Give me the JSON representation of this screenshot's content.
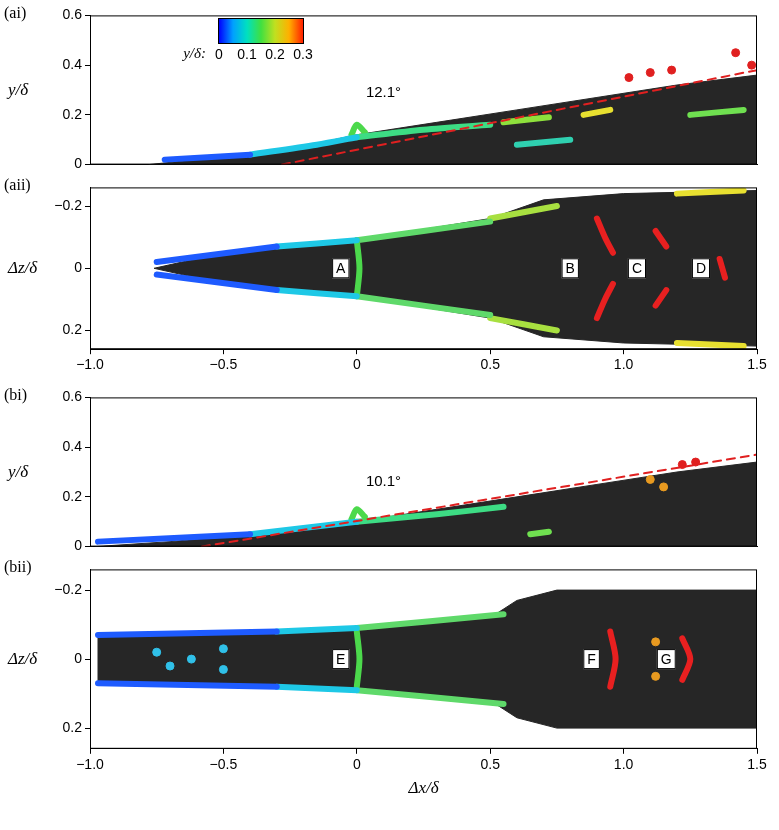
{
  "chart_data": [
    {
      "type": "line",
      "title": "(ai)",
      "y_label": "y/δ",
      "xlim": [
        -1,
        1.5
      ],
      "ylim": [
        0,
        0.6
      ],
      "yticks": [
        0,
        0.2,
        0.4,
        0.6
      ],
      "tick_labels": "y",
      "grid": false,
      "colorbar": {
        "label": "y/δ:",
        "range": [
          0,
          0.3
        ],
        "ticks": [
          0,
          0.1,
          0.2,
          0.3
        ]
      },
      "series": [
        {
          "type": "area",
          "color": "#262626",
          "points": [
            [
              -0.78,
              0
            ],
            [
              -0.6,
              0.02
            ],
            [
              -0.3,
              0.05
            ],
            [
              0,
              0.12
            ],
            [
              0.3,
              0.17
            ],
            [
              0.6,
              0.22
            ],
            [
              0.9,
              0.27
            ],
            [
              1.2,
              0.32
            ],
            [
              1.5,
              0.36
            ],
            [
              1.5,
              0
            ],
            [
              -0.78,
              0
            ]
          ]
        },
        {
          "type": "line",
          "color": "#1e5bff",
          "points": [
            [
              -0.72,
              0.02
            ],
            [
              -0.4,
              0.04
            ]
          ]
        },
        {
          "type": "line",
          "color": "#1ec8e6",
          "points": [
            [
              -0.4,
              0.04
            ],
            [
              -0.15,
              0.08
            ],
            [
              0,
              0.11
            ]
          ]
        },
        {
          "type": "line",
          "color": "#3ddc84",
          "points": [
            [
              0,
              0.11
            ],
            [
              0.25,
              0.14
            ],
            [
              0.5,
              0.16
            ]
          ]
        },
        {
          "type": "line",
          "color": "#4cd94c",
          "points": [
            [
              -0.02,
              0.12
            ],
            [
              0,
              0.16
            ],
            [
              0.03,
              0.13
            ]
          ]
        },
        {
          "type": "line",
          "color": "#8ee03c",
          "points": [
            [
              0.55,
              0.17
            ],
            [
              0.72,
              0.19
            ]
          ]
        },
        {
          "type": "line",
          "color": "#2fd0b0",
          "points": [
            [
              0.6,
              0.08
            ],
            [
              0.8,
              0.1
            ]
          ]
        },
        {
          "type": "line",
          "color": "#e8e030",
          "points": [
            [
              0.85,
              0.2
            ],
            [
              0.95,
              0.22
            ]
          ]
        },
        {
          "type": "line",
          "color": "#6fe050",
          "points": [
            [
              1.25,
              0.2
            ],
            [
              1.45,
              0.22
            ]
          ]
        },
        {
          "type": "scatter",
          "marker": "circle",
          "color": "#e02020",
          "points": [
            [
              1.02,
              0.35
            ],
            [
              1.1,
              0.37
            ],
            [
              1.18,
              0.38
            ],
            [
              1.42,
              0.45
            ],
            [
              1.48,
              0.4
            ]
          ]
        },
        {
          "type": "line",
          "line_style": "dashed",
          "color": "#e02020",
          "points": [
            [
              -0.28,
              0
            ],
            [
              1.5,
              0.38
            ]
          ]
        }
      ],
      "annotations": [
        {
          "text": "12.1°",
          "x": 0.1,
          "y": 0.29
        }
      ]
    },
    {
      "type": "line",
      "title": "(aii)",
      "y_label": "Δz/δ",
      "xlim": [
        -1,
        1.5
      ],
      "ylim": [
        0.26,
        -0.26
      ],
      "xticks": [
        {
          "value": -1,
          "label": "−1.0"
        },
        {
          "value": -0.5,
          "label": "−0.5"
        },
        0,
        0.5,
        {
          "value": 1,
          "label": "1.0"
        },
        1.5
      ],
      "yticks": [
        {
          "value": -0.2,
          "label": "−0.2"
        },
        0,
        0.2
      ],
      "grid": false,
      "series": [
        {
          "type": "area",
          "color": "#262626",
          "points": [
            [
              -0.76,
              0
            ],
            [
              -0.5,
              -0.05
            ],
            [
              0,
              -0.09
            ],
            [
              0.5,
              -0.16
            ],
            [
              0.7,
              -0.22
            ],
            [
              1.0,
              -0.24
            ],
            [
              1.5,
              -0.25
            ],
            [
              1.5,
              0.25
            ],
            [
              1.0,
              0.24
            ],
            [
              0.7,
              0.22
            ],
            [
              0.5,
              0.16
            ],
            [
              0,
              0.09
            ],
            [
              -0.5,
              0.05
            ],
            [
              -0.76,
              0
            ]
          ]
        },
        {
          "type": "line",
          "color": "#1e5bff",
          "points": [
            [
              -0.75,
              -0.02
            ],
            [
              -0.3,
              -0.07
            ]
          ]
        },
        {
          "type": "line",
          "color": "#1e5bff",
          "points": [
            [
              -0.75,
              0.02
            ],
            [
              -0.3,
              0.07
            ]
          ]
        },
        {
          "type": "line",
          "color": "#1ec8e6",
          "points": [
            [
              -0.3,
              -0.07
            ],
            [
              0,
              -0.09
            ]
          ]
        },
        {
          "type": "line",
          "color": "#1ec8e6",
          "points": [
            [
              -0.3,
              0.07
            ],
            [
              0,
              0.09
            ]
          ]
        },
        {
          "type": "line",
          "color": "#4cd94c",
          "points": [
            [
              0,
              -0.09
            ],
            [
              0.01,
              0
            ],
            [
              0,
              0.09
            ]
          ]
        },
        {
          "type": "line",
          "color": "#5fd96a",
          "points": [
            [
              0,
              -0.09
            ],
            [
              0.5,
              -0.15
            ]
          ]
        },
        {
          "type": "line",
          "color": "#5fd96a",
          "points": [
            [
              0,
              0.09
            ],
            [
              0.5,
              0.15
            ]
          ]
        },
        {
          "type": "line",
          "color": "#a8e040",
          "points": [
            [
              0.5,
              -0.16
            ],
            [
              0.75,
              -0.2
            ]
          ]
        },
        {
          "type": "line",
          "color": "#a8e040",
          "points": [
            [
              0.5,
              0.16
            ],
            [
              0.75,
              0.2
            ]
          ]
        },
        {
          "type": "line",
          "color": "#e82020",
          "points": [
            [
              0.9,
              -0.16
            ],
            [
              0.93,
              -0.1
            ],
            [
              0.96,
              -0.05
            ]
          ]
        },
        {
          "type": "line",
          "color": "#e82020",
          "points": [
            [
              0.9,
              0.16
            ],
            [
              0.93,
              0.1
            ],
            [
              0.96,
              0.05
            ]
          ]
        },
        {
          "type": "line",
          "color": "#e82020",
          "points": [
            [
              1.12,
              -0.12
            ],
            [
              1.16,
              -0.07
            ]
          ]
        },
        {
          "type": "line",
          "color": "#e82020",
          "points": [
            [
              1.12,
              0.12
            ],
            [
              1.16,
              0.07
            ]
          ]
        },
        {
          "type": "line",
          "color": "#e82020",
          "points": [
            [
              1.36,
              -0.03
            ],
            [
              1.38,
              0.03
            ]
          ]
        },
        {
          "type": "line",
          "color": "#e8e030",
          "points": [
            [
              1.2,
              -0.24
            ],
            [
              1.45,
              -0.25
            ]
          ]
        },
        {
          "type": "line",
          "color": "#e8e030",
          "points": [
            [
              1.2,
              0.24
            ],
            [
              1.45,
              0.25
            ]
          ]
        }
      ],
      "point_labels": [
        {
          "text": "A",
          "x": -0.06,
          "y": 0
        },
        {
          "text": "B",
          "x": 0.8,
          "y": 0
        },
        {
          "text": "C",
          "x": 1.05,
          "y": 0
        },
        {
          "text": "D",
          "x": 1.29,
          "y": 0
        }
      ]
    },
    {
      "type": "line",
      "title": "(bi)",
      "y_label": "y/δ",
      "xlim": [
        -1,
        1.5
      ],
      "ylim": [
        0,
        0.6
      ],
      "yticks": [
        0,
        0.2,
        0.4,
        0.6
      ],
      "tick_labels": "y",
      "grid": false,
      "series": [
        {
          "type": "area",
          "color": "#262626",
          "points": [
            [
              -0.98,
              0
            ],
            [
              -0.7,
              0.02
            ],
            [
              -0.3,
              0.06
            ],
            [
              0,
              0.1
            ],
            [
              0.3,
              0.15
            ],
            [
              0.6,
              0.2
            ],
            [
              0.9,
              0.25
            ],
            [
              1.2,
              0.3
            ],
            [
              1.5,
              0.34
            ],
            [
              1.5,
              0
            ],
            [
              -0.98,
              0
            ]
          ]
        },
        {
          "type": "line",
          "color": "#1e5bff",
          "points": [
            [
              -0.97,
              0.02
            ],
            [
              -0.4,
              0.05
            ]
          ]
        },
        {
          "type": "line",
          "color": "#1ec8e6",
          "points": [
            [
              -0.4,
              0.05
            ],
            [
              0,
              0.1
            ]
          ]
        },
        {
          "type": "line",
          "color": "#4cd94c",
          "points": [
            [
              -0.02,
              0.11
            ],
            [
              0,
              0.15
            ],
            [
              0.03,
              0.12
            ]
          ]
        },
        {
          "type": "line",
          "color": "#3ddc84",
          "points": [
            [
              0,
              0.1
            ],
            [
              0.3,
              0.13
            ],
            [
              0.55,
              0.16
            ]
          ]
        },
        {
          "type": "line",
          "color": "#6fe050",
          "points": [
            [
              0.65,
              0.05
            ],
            [
              0.72,
              0.06
            ]
          ]
        },
        {
          "type": "scatter",
          "marker": "circle",
          "color": "#e89a20",
          "points": [
            [
              1.1,
              0.27
            ],
            [
              1.15,
              0.24
            ]
          ]
        },
        {
          "type": "scatter",
          "marker": "circle",
          "color": "#e02020",
          "points": [
            [
              1.22,
              0.33
            ],
            [
              1.27,
              0.34
            ]
          ]
        },
        {
          "type": "line",
          "line_style": "dashed",
          "color": "#e02020",
          "points": [
            [
              -0.58,
              0
            ],
            [
              1.5,
              0.37
            ]
          ]
        }
      ],
      "annotations": [
        {
          "text": "10.1°",
          "x": 0.1,
          "y": 0.26
        }
      ]
    },
    {
      "type": "line",
      "title": "(bii)",
      "y_label": "Δz/δ",
      "x_label": "Δx/δ",
      "xlim": [
        -1,
        1.5
      ],
      "ylim": [
        0.26,
        -0.26
      ],
      "xticks": [
        {
          "value": -1,
          "label": "−1.0"
        },
        {
          "value": -0.5,
          "label": "−0.5"
        },
        0,
        0.5,
        {
          "value": 1,
          "label": "1.0"
        },
        1.5
      ],
      "yticks": [
        {
          "value": -0.2,
          "label": "−0.2"
        },
        0,
        0.2
      ],
      "grid": false,
      "series": [
        {
          "type": "area",
          "color": "#262626",
          "points": [
            [
              -0.97,
              -0.07
            ],
            [
              -0.5,
              -0.08
            ],
            [
              0,
              -0.09
            ],
            [
              0.5,
              -0.12
            ],
            [
              0.6,
              -0.17
            ],
            [
              0.75,
              -0.2
            ],
            [
              1.5,
              -0.2
            ],
            [
              1.5,
              0.2
            ],
            [
              0.75,
              0.2
            ],
            [
              0.6,
              0.17
            ],
            [
              0.5,
              0.12
            ],
            [
              0,
              0.09
            ],
            [
              -0.5,
              0.08
            ],
            [
              -0.97,
              0.07
            ],
            [
              -0.97,
              -0.07
            ]
          ]
        },
        {
          "type": "line",
          "color": "#1e5bff",
          "points": [
            [
              -0.97,
              -0.07
            ],
            [
              -0.3,
              -0.08
            ]
          ]
        },
        {
          "type": "line",
          "color": "#1e5bff",
          "points": [
            [
              -0.97,
              0.07
            ],
            [
              -0.3,
              0.08
            ]
          ]
        },
        {
          "type": "line",
          "color": "#1ec8e6",
          "points": [
            [
              -0.3,
              -0.08
            ],
            [
              0,
              -0.09
            ]
          ]
        },
        {
          "type": "line",
          "color": "#1ec8e6",
          "points": [
            [
              -0.3,
              0.08
            ],
            [
              0,
              0.09
            ]
          ]
        },
        {
          "type": "line",
          "color": "#4cd94c",
          "points": [
            [
              0,
              -0.08
            ],
            [
              0.01,
              0
            ],
            [
              0,
              0.08
            ]
          ]
        },
        {
          "type": "line",
          "color": "#5fd96a",
          "points": [
            [
              0,
              -0.09
            ],
            [
              0.55,
              -0.13
            ]
          ]
        },
        {
          "type": "line",
          "color": "#5fd96a",
          "points": [
            [
              0,
              0.09
            ],
            [
              0.55,
              0.13
            ]
          ]
        },
        {
          "type": "scatter",
          "marker": "circle",
          "color": "#30c0e8",
          "points": [
            [
              -0.75,
              -0.02
            ],
            [
              -0.7,
              0.02
            ],
            [
              -0.62,
              0
            ],
            [
              -0.5,
              -0.03
            ],
            [
              -0.5,
              0.03
            ]
          ]
        },
        {
          "type": "line",
          "color": "#e82020",
          "points": [
            [
              0.95,
              -0.08
            ],
            [
              0.97,
              0
            ],
            [
              0.95,
              0.08
            ]
          ]
        },
        {
          "type": "line",
          "color": "#e82020",
          "points": [
            [
              1.22,
              -0.06
            ],
            [
              1.25,
              0
            ],
            [
              1.22,
              0.06
            ]
          ]
        },
        {
          "type": "scatter",
          "marker": "circle",
          "color": "#e89a20",
          "points": [
            [
              1.12,
              -0.05
            ],
            [
              1.12,
              0.05
            ]
          ]
        }
      ],
      "point_labels": [
        {
          "text": "E",
          "x": -0.06,
          "y": 0
        },
        {
          "text": "F",
          "x": 0.88,
          "y": 0
        },
        {
          "text": "G",
          "x": 1.16,
          "y": 0
        }
      ]
    }
  ]
}
